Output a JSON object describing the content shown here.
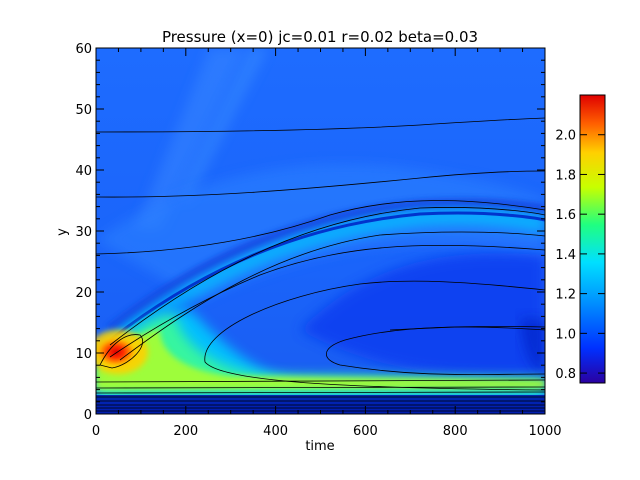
{
  "chart_data": {
    "type": "heatmap",
    "title": "Pressure (x=0) jc=0.01 r=0.02 beta=0.03",
    "xlabel": "time",
    "ylabel": "y",
    "xlim": [
      0,
      1000
    ],
    "ylim": [
      0,
      60
    ],
    "x_ticks": [
      "0",
      "200",
      "400",
      "600",
      "800",
      "1000"
    ],
    "y_ticks": [
      "0",
      "10",
      "20",
      "30",
      "40",
      "50",
      "60"
    ],
    "colorbar": {
      "range": [
        0.75,
        2.2
      ],
      "ticks": [
        "0.8",
        "1.0",
        "1.2",
        "1.4",
        "1.6",
        "1.8",
        "2.0"
      ]
    },
    "colormap": [
      "#2a00a0",
      "#0030ff",
      "#0090ff",
      "#00e0ff",
      "#20ff80",
      "#c8ff00",
      "#ffd000",
      "#ff6000",
      "#e00000"
    ],
    "grid": false
  }
}
